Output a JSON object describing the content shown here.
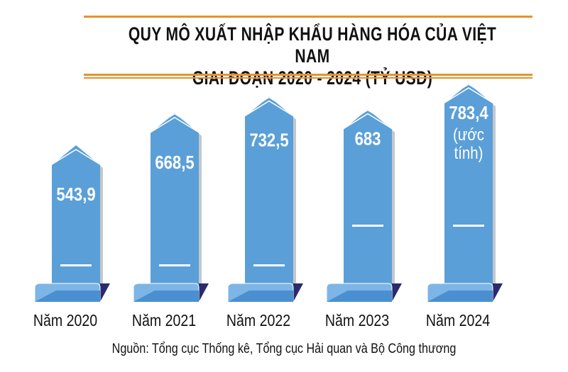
{
  "chart_data": {
    "type": "bar",
    "title": "QUY MÔ XUẤT NHẬP KHẨU HÀNG HÓA CỦA VIỆT NAM GIAI ĐOẠN 2020 - 2024 (TỶ USD)",
    "title_line1": "QUY MÔ XUẤT NHẬP KHẨU HÀNG HÓA CỦA VIỆT NAM",
    "title_line2": "GIAI ĐOẠN 2020 - 2024 (TỶ USD)",
    "categories": [
      "Năm 2020",
      "Năm 2021",
      "Năm 2022",
      "Năm 2023",
      "Năm 2024"
    ],
    "values": [
      543.9,
      668.5,
      732.5,
      683,
      783.4
    ],
    "value_labels": [
      "543,9",
      "668,5",
      "732,5",
      "683",
      "783,4"
    ],
    "notes": [
      "",
      "",
      "",
      "",
      "(ước tính)"
    ],
    "note_lines": [
      "(ước",
      "tính)"
    ],
    "ylabel": "Tỷ USD",
    "source": "Nguồn: Tổng cục Thống kê, Tổng cục Hải quan và Bộ Công thương",
    "colors": {
      "bar": "#5a9fd8",
      "base": "#4a8fd0",
      "dark": "#2c2a6e",
      "rule": "#e8912e"
    }
  }
}
